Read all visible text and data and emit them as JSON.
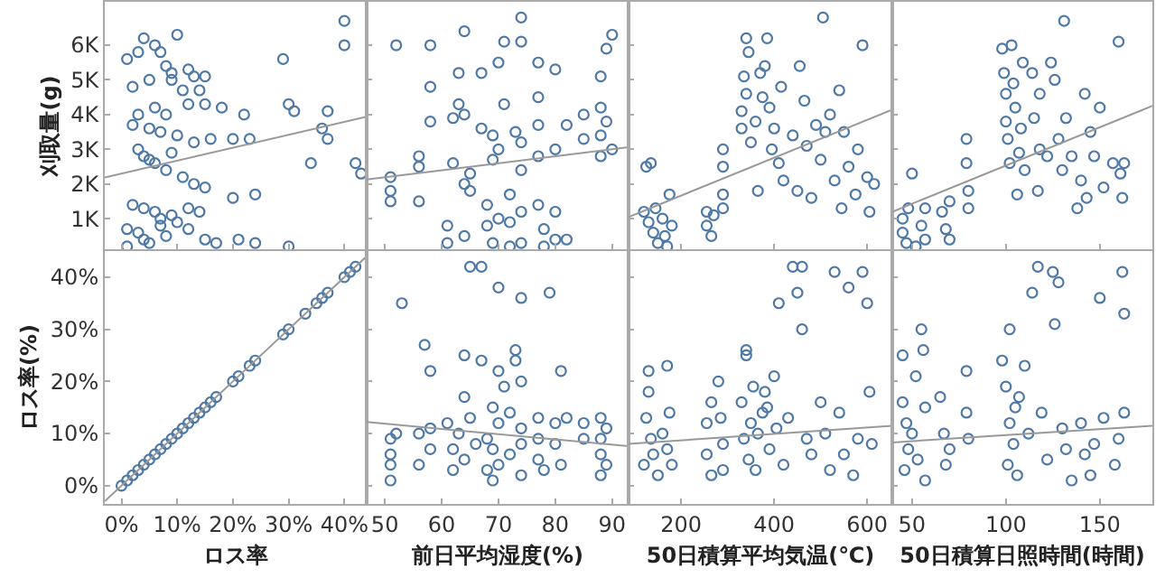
{
  "chart_data": [
    {
      "type": "scatter",
      "ylabel": "刈取量(g)",
      "tick_labels": "y",
      "marker": "circle",
      "grid": false,
      "xlim": [
        -3,
        44
      ],
      "xticks": [
        {
          "value": 0,
          "label": null
        },
        {
          "value": 10,
          "label": null
        },
        {
          "value": 20,
          "label": null
        },
        {
          "value": 30,
          "label": null
        },
        {
          "value": 40,
          "label": null
        }
      ],
      "ylim": [
        120,
        7250
      ],
      "yticks": [
        {
          "value": 1000,
          "label": "1K"
        },
        {
          "value": 2000,
          "label": "2K"
        },
        {
          "value": 3000,
          "label": "3K"
        },
        {
          "value": 4000,
          "label": "4K"
        },
        {
          "value": 5000,
          "label": "5K"
        },
        {
          "value": 6000,
          "label": "6K"
        }
      ],
      "series": [
        {
          "color": "#4e79a7",
          "x": [
            1,
            2,
            3,
            4,
            6,
            7,
            8,
            9,
            10,
            12,
            13,
            15,
            5,
            9,
            11,
            14,
            3,
            6,
            8,
            12,
            15,
            18,
            2,
            5,
            7,
            10,
            13,
            16,
            20,
            3,
            4,
            5,
            6,
            8,
            9,
            11,
            13,
            15,
            2,
            4,
            6,
            7,
            9,
            12,
            14,
            1,
            3,
            4,
            5,
            7,
            8,
            10,
            12,
            15,
            17,
            21,
            24,
            30,
            1,
            20,
            24,
            29,
            30,
            31,
            34,
            36,
            37,
            37,
            40,
            40,
            42,
            43,
            23,
            22
          ],
          "values": [
            5600,
            4800,
            5800,
            6200,
            6000,
            5800,
            5400,
            5200,
            6300,
            5300,
            5100,
            5100,
            5000,
            5000,
            4700,
            4700,
            4000,
            4200,
            4000,
            4300,
            4300,
            4200,
            3700,
            3600,
            3500,
            3400,
            3200,
            3300,
            3300,
            3000,
            2800,
            2700,
            2600,
            2400,
            2900,
            2200,
            2000,
            1900,
            1400,
            1300,
            1200,
            1000,
            1100,
            1300,
            1200,
            700,
            600,
            400,
            300,
            800,
            500,
            900,
            700,
            400,
            300,
            400,
            300,
            200,
            200,
            1600,
            1700,
            5600,
            4300,
            4100,
            2600,
            3600,
            4100,
            3300,
            6700,
            6000,
            2600,
            2300,
            3300,
            4000
          ]
        },
        {
          "type": "line",
          "marker": "none",
          "color": "#999999",
          "x": [
            -3,
            44
          ],
          "values": [
            2190,
            3940
          ]
        }
      ]
    },
    {
      "type": "scatter",
      "tick_labels": false,
      "marker": "circle",
      "grid": false,
      "xlim": [
        46.8,
        92.9
      ],
      "xticks": [
        {
          "value": 50,
          "label": null
        },
        {
          "value": 60,
          "label": null
        },
        {
          "value": 70,
          "label": null
        },
        {
          "value": 80,
          "label": null
        },
        {
          "value": 90,
          "label": null
        }
      ],
      "ylim": [
        120,
        7250
      ],
      "yticks": [
        {
          "value": 1000,
          "label": null
        },
        {
          "value": 2000,
          "label": null
        },
        {
          "value": 3000,
          "label": null
        },
        {
          "value": 4000,
          "label": null
        },
        {
          "value": 5000,
          "label": null
        },
        {
          "value": 6000,
          "label": null
        }
      ],
      "series": [
        {
          "color": "#4e79a7",
          "x": [
            51,
            51,
            51,
            52,
            56,
            56,
            56,
            58,
            58,
            58,
            61,
            61,
            62,
            62,
            63,
            63,
            64,
            64,
            64,
            64,
            65,
            65,
            67,
            67,
            68,
            68,
            69,
            69,
            69,
            70,
            70,
            70,
            71,
            71,
            72,
            72,
            72,
            73,
            74,
            74,
            74,
            74,
            74,
            74,
            77,
            77,
            77,
            77,
            77,
            78,
            78,
            80,
            80,
            80,
            80,
            82,
            82,
            85,
            85,
            88,
            88,
            88,
            88,
            89,
            89,
            90,
            90
          ],
          "values": [
            2200,
            1800,
            1500,
            6000,
            2800,
            2500,
            1500,
            6000,
            4800,
            3800,
            800,
            300,
            2600,
            3900,
            5200,
            4300,
            6400,
            4000,
            2000,
            500,
            2300,
            1800,
            5200,
            3600,
            1400,
            800,
            300,
            3400,
            2700,
            5500,
            3000,
            1000,
            6100,
            4300,
            1700,
            900,
            200,
            3500,
            6800,
            6100,
            3200,
            2400,
            1200,
            300,
            5500,
            4500,
            3700,
            2800,
            1400,
            700,
            200,
            3000,
            5300,
            1200,
            400,
            3700,
            400,
            3300,
            4000,
            5100,
            4200,
            3400,
            2800,
            5900,
            3800,
            6300,
            3000
          ]
        },
        {
          "type": "line",
          "marker": "none",
          "color": "#999999",
          "x": [
            46.8,
            92.9
          ],
          "values": [
            2130,
            3060
          ]
        }
      ]
    },
    {
      "type": "scatter",
      "tick_labels": false,
      "marker": "circle",
      "grid": false,
      "xlim": [
        87,
        654
      ],
      "xticks": [
        {
          "value": 200,
          "label": null
        },
        {
          "value": 400,
          "label": null
        },
        {
          "value": 600,
          "label": null
        }
      ],
      "ylim": [
        120,
        7250
      ],
      "yticks": [
        {
          "value": 1000,
          "label": null
        },
        {
          "value": 2000,
          "label": null
        },
        {
          "value": 3000,
          "label": null
        },
        {
          "value": 4000,
          "label": null
        },
        {
          "value": 5000,
          "label": null
        },
        {
          "value": 6000,
          "label": null
        }
      ],
      "series": [
        {
          "color": "#4e79a7",
          "x": [
            125,
            135,
            120,
            130,
            140,
            150,
            160,
            165,
            170,
            175,
            180,
            145,
            255,
            255,
            265,
            270,
            290,
            290,
            290,
            290,
            330,
            330,
            335,
            340,
            345,
            340,
            350,
            360,
            365,
            370,
            375,
            380,
            385,
            390,
            395,
            400,
            410,
            415,
            420,
            440,
            450,
            455,
            465,
            470,
            480,
            490,
            500,
            505,
            510,
            520,
            530,
            540,
            545,
            550,
            560,
            575,
            580,
            590,
            600,
            605,
            615
          ],
          "values": [
            2500,
            2600,
            1200,
            900,
            600,
            300,
            1000,
            500,
            200,
            1700,
            800,
            1300,
            1200,
            800,
            500,
            1100,
            3000,
            2500,
            1700,
            1300,
            3600,
            4100,
            5100,
            6200,
            5800,
            4600,
            3200,
            3800,
            1800,
            5200,
            4500,
            5400,
            6200,
            4200,
            3000,
            3600,
            2600,
            4800,
            2100,
            3400,
            1800,
            5400,
            4400,
            3100,
            1600,
            3700,
            2700,
            6800,
            3500,
            4000,
            2100,
            4700,
            1300,
            3500,
            2500,
            1700,
            3000,
            6000,
            2200,
            1200,
            2000
          ]
        },
        {
          "type": "line",
          "marker": "none",
          "color": "#999999",
          "x": [
            87,
            654
          ],
          "values": [
            1050,
            4140
          ]
        }
      ]
    },
    {
      "type": "scatter",
      "tick_labels": false,
      "marker": "circle",
      "grid": false,
      "xlim": [
        39.5,
        178
      ],
      "xticks": [
        {
          "value": 50,
          "label": null
        },
        {
          "value": 100,
          "label": null
        },
        {
          "value": 150,
          "label": null
        }
      ],
      "ylim": [
        120,
        7250
      ],
      "yticks": [
        {
          "value": 1000,
          "label": null
        },
        {
          "value": 2000,
          "label": null
        },
        {
          "value": 3000,
          "label": null
        },
        {
          "value": 4000,
          "label": null
        },
        {
          "value": 5000,
          "label": null
        },
        {
          "value": 6000,
          "label": null
        }
      ],
      "series": [
        {
          "color": "#4e79a7",
          "x": [
            45,
            45,
            47,
            48,
            50,
            52,
            55,
            57,
            57,
            66,
            68,
            70,
            70,
            79,
            79,
            80,
            80,
            98,
            99,
            100,
            100,
            101,
            102,
            103,
            104,
            105,
            106,
            107,
            108,
            109,
            110,
            114,
            115,
            117,
            118,
            118,
            122,
            124,
            126,
            128,
            130,
            131,
            132,
            135,
            138,
            140,
            142,
            143,
            145,
            147,
            150,
            152,
            157,
            160,
            161,
            162,
            163
          ],
          "values": [
            1000,
            600,
            300,
            1300,
            2300,
            200,
            800,
            1300,
            400,
            1200,
            700,
            400,
            1500,
            3300,
            2600,
            1800,
            1300,
            5900,
            5200,
            4600,
            3800,
            3300,
            2600,
            6000,
            4900,
            4200,
            1700,
            2900,
            3600,
            5500,
            2400,
            5200,
            3900,
            1800,
            3000,
            4600,
            2800,
            5500,
            5000,
            3300,
            2400,
            6700,
            3900,
            2800,
            1300,
            2100,
            4600,
            1600,
            3500,
            2800,
            4200,
            1900,
            2600,
            6100,
            2300,
            1600,
            2600
          ]
        },
        {
          "type": "line",
          "marker": "none",
          "color": "#999999",
          "x": [
            39.5,
            178
          ],
          "values": [
            1200,
            4250
          ]
        }
      ]
    },
    {
      "type": "scatter",
      "ylabel": "ロス率(%)",
      "xlabel": "ロス率",
      "marker": "circle",
      "grid": false,
      "xlim": [
        -3,
        44
      ],
      "xticks": [
        {
          "value": 0,
          "label": "0%"
        },
        {
          "value": 10,
          "label": "10%"
        },
        {
          "value": 20,
          "label": "20%"
        },
        {
          "value": 30,
          "label": "30%"
        },
        {
          "value": 40,
          "label": "40%"
        }
      ],
      "ylim": [
        -3.5,
        45
      ],
      "yticks": [
        {
          "value": 0,
          "label": "0%"
        },
        {
          "value": 10,
          "label": "10%"
        },
        {
          "value": 20,
          "label": "20%"
        },
        {
          "value": 30,
          "label": "30%"
        },
        {
          "value": 40,
          "label": "40%"
        }
      ],
      "series": [
        {
          "color": "#4e79a7",
          "x": [
            0,
            1,
            2,
            3,
            4,
            5,
            6,
            7,
            8,
            9,
            10,
            11,
            12,
            13,
            14,
            15,
            16,
            17,
            20,
            21,
            23,
            24,
            29,
            30,
            33,
            35,
            36,
            37,
            40,
            41,
            42
          ],
          "values": [
            0,
            1,
            2,
            3,
            4,
            5,
            6,
            7,
            8,
            9,
            10,
            11,
            12,
            13,
            14,
            15,
            16,
            17,
            20,
            21,
            23,
            24,
            29,
            30,
            33,
            35,
            36,
            37,
            40,
            41,
            42
          ]
        },
        {
          "type": "line",
          "marker": "none",
          "color": "#999999",
          "x": [
            -3,
            44
          ],
          "values": [
            -3,
            44
          ]
        }
      ]
    },
    {
      "type": "scatter",
      "xlabel": "前日平均湿度(%)",
      "tick_labels": "x",
      "marker": "circle",
      "grid": false,
      "xlim": [
        46.8,
        92.9
      ],
      "xticks": [
        50,
        60,
        70,
        80,
        90
      ],
      "ylim": [
        -3.5,
        45
      ],
      "yticks": [
        {
          "value": 0,
          "label": null
        },
        {
          "value": 10,
          "label": null
        },
        {
          "value": 20,
          "label": null
        },
        {
          "value": 30,
          "label": null
        },
        {
          "value": 40,
          "label": null
        }
      ],
      "series": [
        {
          "color": "#4e79a7",
          "x": [
            51,
            51,
            51,
            51,
            52,
            53,
            56,
            56,
            57,
            58,
            58,
            58,
            61,
            62,
            62,
            63,
            64,
            64,
            64,
            65,
            65,
            66,
            67,
            67,
            68,
            68,
            69,
            69,
            69,
            70,
            70,
            70,
            70,
            71,
            72,
            72,
            73,
            73,
            74,
            74,
            74,
            74,
            74,
            77,
            77,
            77,
            78,
            79,
            80,
            80,
            81,
            81,
            82,
            85,
            85,
            88,
            88,
            88,
            88,
            89,
            89
          ],
          "values": [
            1,
            4,
            6,
            9,
            10,
            35,
            4,
            10,
            27,
            11,
            7,
            22,
            12,
            3,
            7,
            10,
            5,
            25,
            17,
            42,
            13,
            8,
            24,
            42,
            3,
            9,
            15,
            7,
            1,
            38,
            22,
            12,
            4,
            19,
            14,
            6,
            24,
            26,
            36,
            20,
            11,
            2,
            8,
            13,
            9,
            5,
            3,
            37,
            12,
            8,
            22,
            4,
            13,
            12,
            9,
            13,
            9,
            6,
            2,
            11,
            4
          ]
        },
        {
          "type": "line",
          "marker": "none",
          "color": "#999999",
          "x": [
            46.8,
            92.9
          ],
          "values": [
            12.2,
            7.6
          ]
        }
      ]
    },
    {
      "type": "scatter",
      "xlabel": "50日積算平均気温(℃)",
      "tick_labels": "x",
      "marker": "circle",
      "grid": false,
      "xlim": [
        87,
        654
      ],
      "xticks": [
        200,
        400,
        600
      ],
      "ylim": [
        -3.5,
        45
      ],
      "yticks": [
        {
          "value": 0,
          "label": null
        },
        {
          "value": 10,
          "label": null
        },
        {
          "value": 20,
          "label": null
        },
        {
          "value": 30,
          "label": null
        },
        {
          "value": 40,
          "label": null
        }
      ],
      "series": [
        {
          "color": "#4e79a7",
          "x": [
            120,
            125,
            130,
            130,
            135,
            140,
            150,
            160,
            170,
            170,
            175,
            180,
            255,
            255,
            265,
            265,
            280,
            285,
            290,
            290,
            330,
            335,
            340,
            340,
            345,
            350,
            355,
            360,
            365,
            375,
            380,
            385,
            390,
            400,
            405,
            410,
            420,
            430,
            440,
            450,
            460,
            460,
            470,
            480,
            500,
            510,
            520,
            530,
            540,
            550,
            560,
            570,
            580,
            590,
            600,
            605,
            610
          ],
          "values": [
            4,
            13,
            18,
            22,
            9,
            6,
            2,
            10,
            23,
            7,
            14,
            4,
            12,
            6,
            16,
            2,
            20,
            13,
            8,
            3,
            16,
            9,
            26,
            25,
            5,
            12,
            19,
            3,
            10,
            14,
            18,
            15,
            7,
            21,
            11,
            35,
            4,
            13,
            42,
            37,
            42,
            30,
            9,
            6,
            16,
            10,
            3,
            41,
            14,
            6,
            38,
            2,
            9,
            41,
            35,
            18,
            8
          ]
        },
        {
          "type": "line",
          "marker": "none",
          "color": "#999999",
          "x": [
            87,
            654
          ],
          "values": [
            8,
            11.5
          ]
        }
      ]
    },
    {
      "type": "scatter",
      "xlabel": "50日積算日照時間(時間)",
      "tick_labels": "x",
      "marker": "circle",
      "grid": false,
      "xlim": [
        39.5,
        178
      ],
      "xticks": [
        50,
        100,
        150
      ],
      "ylim": [
        -3.5,
        45
      ],
      "yticks": [
        {
          "value": 0,
          "label": null
        },
        {
          "value": 10,
          "label": null
        },
        {
          "value": 20,
          "label": null
        },
        {
          "value": 30,
          "label": null
        },
        {
          "value": 40,
          "label": null
        }
      ],
      "series": [
        {
          "color": "#4e79a7",
          "x": [
            45,
            45,
            46,
            47,
            48,
            50,
            52,
            53,
            55,
            56,
            57,
            57,
            65,
            67,
            68,
            70,
            79,
            79,
            80,
            98,
            100,
            101,
            102,
            102,
            104,
            105,
            106,
            107,
            110,
            112,
            114,
            117,
            119,
            122,
            125,
            126,
            128,
            130,
            132,
            135,
            140,
            142,
            145,
            147,
            150,
            152,
            158,
            160,
            162,
            163,
            163
          ],
          "values": [
            25,
            16,
            3,
            12,
            7,
            10,
            21,
            5,
            30,
            26,
            1,
            15,
            17,
            10,
            4,
            7,
            22,
            14,
            9,
            24,
            19,
            4,
            12,
            30,
            8,
            15,
            2,
            17,
            23,
            10,
            37,
            42,
            14,
            5,
            41,
            31,
            39,
            11,
            7,
            1,
            12,
            6,
            2,
            8,
            36,
            13,
            4,
            9,
            41,
            33,
            14
          ]
        },
        {
          "type": "line",
          "marker": "none",
          "color": "#999999",
          "x": [
            39.5,
            178
          ],
          "values": [
            8.3,
            11.5
          ]
        }
      ]
    }
  ]
}
